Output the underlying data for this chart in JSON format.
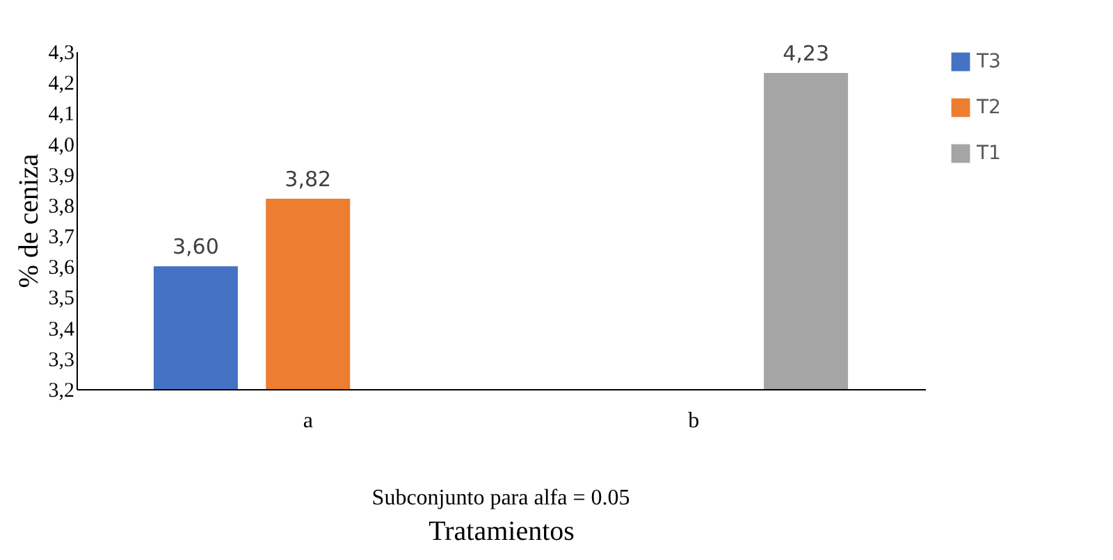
{
  "chart_data": {
    "type": "bar",
    "categories": [
      "a",
      "b"
    ],
    "series": [
      {
        "name": "T3",
        "color": "#4472c4",
        "values": [
          3.6,
          null
        ],
        "value_labels": [
          "3,60",
          null
        ]
      },
      {
        "name": "T2",
        "color": "#ed7d31",
        "values": [
          3.82,
          null
        ],
        "value_labels": [
          "3,82",
          null
        ]
      },
      {
        "name": "T1",
        "color": "#a5a5a5",
        "values": [
          null,
          4.23
        ],
        "value_labels": [
          null,
          "4,23"
        ]
      }
    ],
    "ylim": [
      3.2,
      4.3
    ],
    "yticks": [
      {
        "value": 3.2,
        "label": "3,2"
      },
      {
        "value": 3.3,
        "label": "3,3"
      },
      {
        "value": 3.4,
        "label": "3,4"
      },
      {
        "value": 3.5,
        "label": "3,5"
      },
      {
        "value": 3.6,
        "label": "3,6"
      },
      {
        "value": 3.7,
        "label": "3,7"
      },
      {
        "value": 3.8,
        "label": "3,8"
      },
      {
        "value": 3.9,
        "label": "3,9"
      },
      {
        "value": 4.0,
        "label": "4,0"
      },
      {
        "value": 4.1,
        "label": "4,1"
      },
      {
        "value": 4.2,
        "label": "4,2"
      },
      {
        "value": 4.3,
        "label": "4,3"
      }
    ],
    "ylabel": "% de ceniza",
    "xlabel": "Tratamientos",
    "annotations": [
      "Subconjunto para alfa = 0.05"
    ],
    "legend": "right",
    "grid": false
  }
}
